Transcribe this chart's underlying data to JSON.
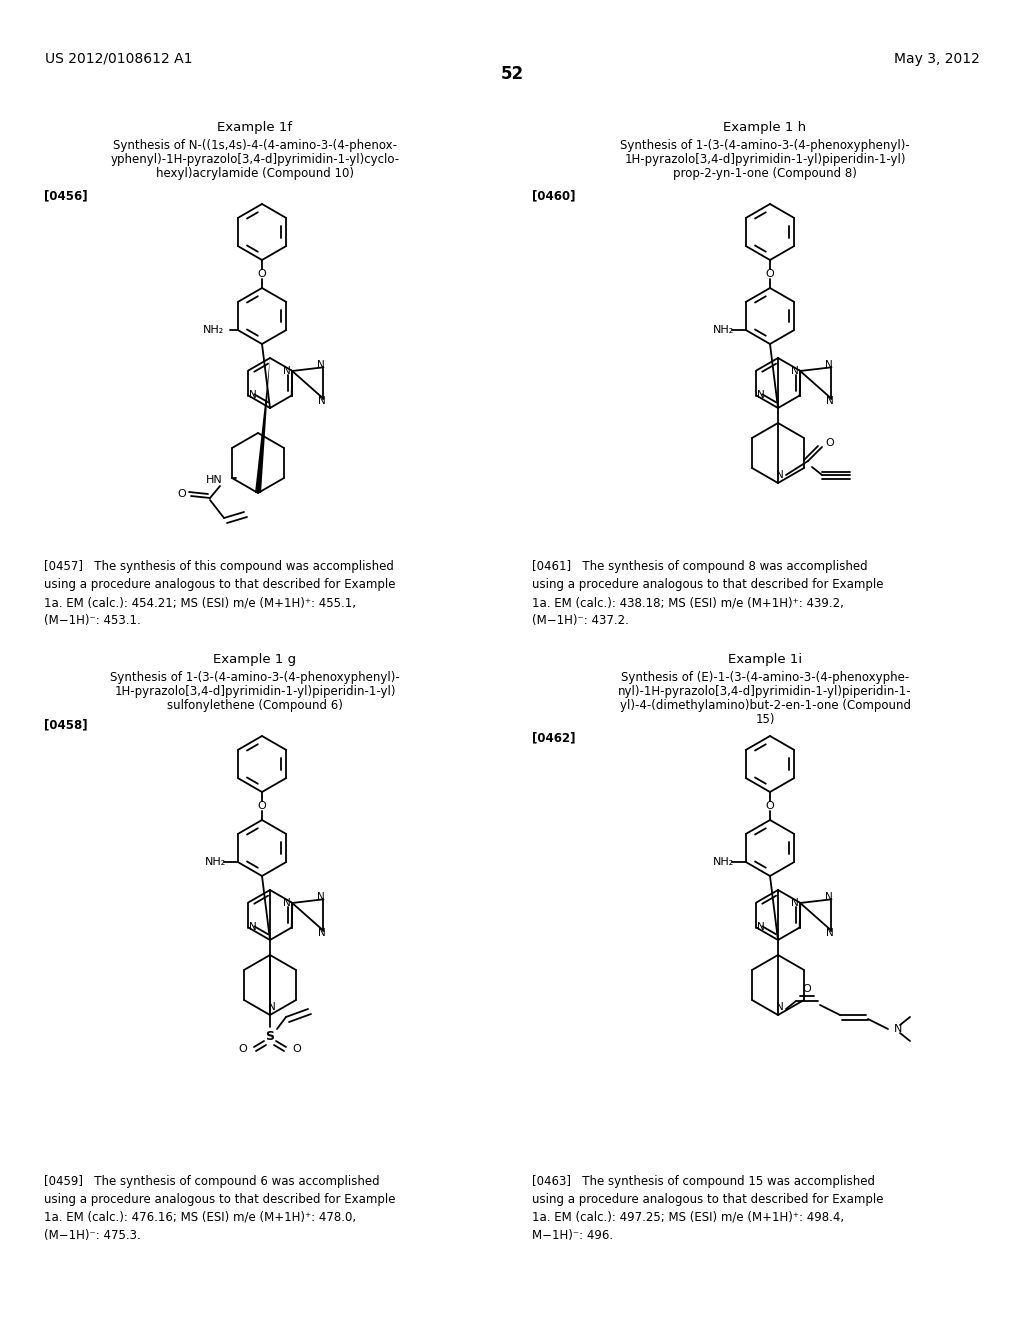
{
  "bg_color": "#ffffff",
  "header_left": "US 2012/0108612 A1",
  "header_right": "May 3, 2012",
  "page_number": "52",
  "ex1f_title": "Example 1f",
  "ex1f_sub1": "Synthesis of N-((1s,4s)-4-(4-amino-3-(4-phenox-",
  "ex1f_sub2": "yphenyl)-1H-pyrazolo[3,4-d]pyrimidin-1-yl)cyclo-",
  "ex1f_sub3": "hexyl)acrylamide (Compound 10)",
  "ex1f_tag": "[0456]",
  "ex1f_text": "[0457]   The synthesis of this compound was accomplished\nusing a procedure analogous to that described for Example\n1a. EM (calc.): 454.21; MS (ESI) m/e (M+1H)⁺: 455.1,\n(M−1H)⁻: 453.1.",
  "ex1h_title": "Example 1 h",
  "ex1h_sub1": "Synthesis of 1-(3-(4-amino-3-(4-phenoxyphenyl)-",
  "ex1h_sub2": "1H-pyrazolo[3,4-d]pyrimidin-1-yl)piperidin-1-yl)",
  "ex1h_sub3": "prop-2-yn-1-one (Compound 8)",
  "ex1h_tag": "[0460]",
  "ex1h_text": "[0461]   The synthesis of compound 8 was accomplished\nusing a procedure analogous to that described for Example\n1a. EM (calc.): 438.18; MS (ESI) m/e (M+1H)⁺: 439.2,\n(M−1H)⁻: 437.2.",
  "ex1g_title": "Example 1 g",
  "ex1g_sub1": "Synthesis of 1-(3-(4-amino-3-(4-phenoxyphenyl)-",
  "ex1g_sub2": "1H-pyrazolo[3,4-d]pyrimidin-1-yl)piperidin-1-yl)",
  "ex1g_sub3": "sulfonylethene (Compound 6)",
  "ex1g_tag": "[0458]",
  "ex1g_text": "[0459]   The synthesis of compound 6 was accomplished\nusing a procedure analogous to that described for Example\n1a. EM (calc.): 476.16; MS (ESI) m/e (M+1H)⁺: 478.0,\n(M−1H)⁻: 475.3.",
  "ex1i_title": "Example 1i",
  "ex1i_sub1": "Synthesis of (E)-1-(3-(4-amino-3-(4-phenoxyphe-",
  "ex1i_sub2": "nyl)-1H-pyrazolo[3,4-d]pyrimidin-1-yl)piperidin-1-",
  "ex1i_sub3": "yl)-4-(dimethylamino)but-2-en-1-one (Compound",
  "ex1i_sub4": "15)",
  "ex1i_tag": "[0462]",
  "ex1i_text": "[0463]   The synthesis of compound 15 was accomplished\nusing a procedure analogous to that described for Example\n1a. EM (calc.): 497.25; MS (ESI) m/e (M+1H)⁺: 498.4,\nM−1H)⁻: 496."
}
